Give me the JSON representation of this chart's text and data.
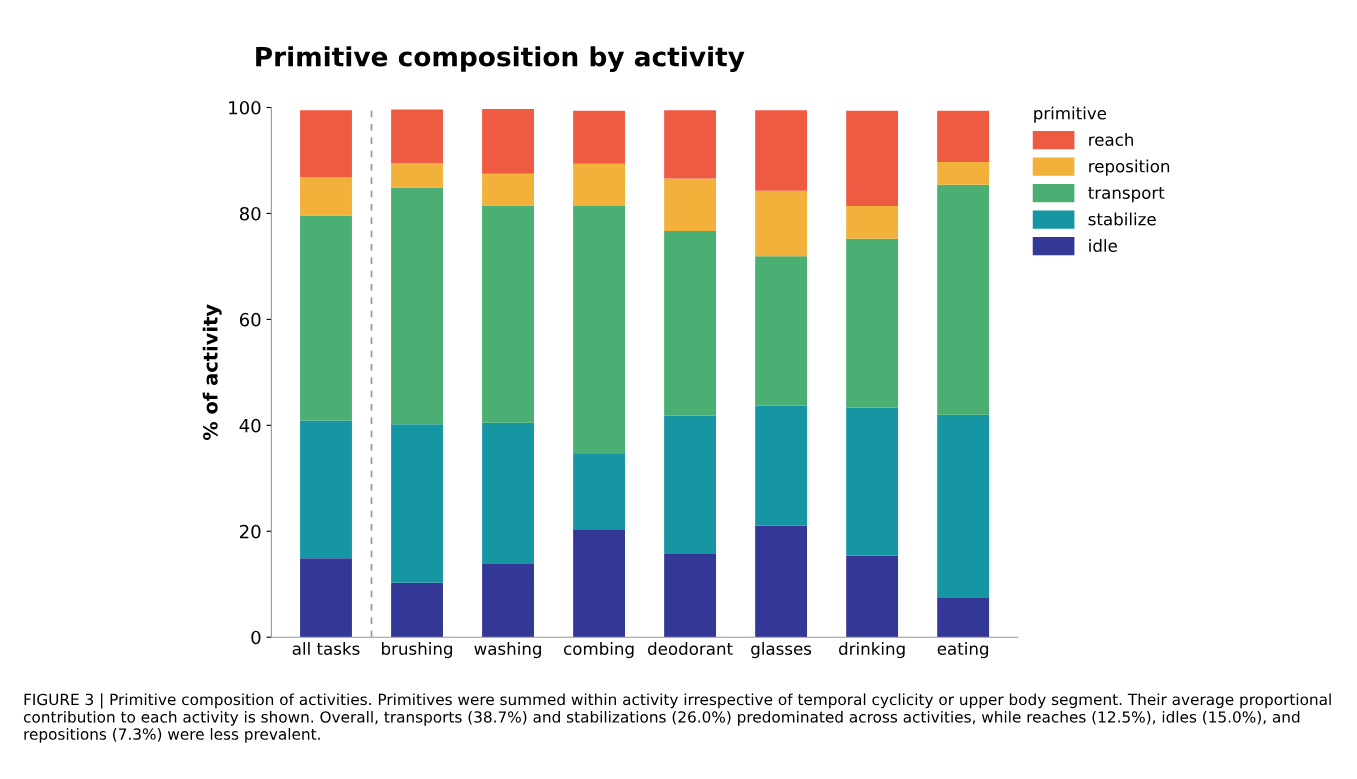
{
  "chart_data": {
    "type": "bar",
    "stacked": true,
    "title": "Primitive composition by activity",
    "ylabel": "% of activity",
    "legend_title": "primitive",
    "legend": "top right",
    "grid": false,
    "categories": [
      "all tasks",
      "brushing",
      "washing",
      "combing",
      "deodorant",
      "glasses",
      "drinking",
      "eating"
    ],
    "series": [
      {
        "name": "idle",
        "color": "#333795",
        "values": [
          14.9,
          10.3,
          13.8,
          20.4,
          15.7,
          21.1,
          15.4,
          7.4
        ]
      },
      {
        "name": "stabilize",
        "color": "#1696a3",
        "values": [
          26.0,
          29.9,
          26.7,
          14.2,
          26.1,
          22.6,
          27.9,
          34.6
        ]
      },
      {
        "name": "transport",
        "color": "#4bae72",
        "values": [
          38.7,
          44.7,
          41.0,
          46.8,
          34.9,
          28.2,
          31.9,
          43.4
        ]
      },
      {
        "name": "reposition",
        "color": "#f2b13b",
        "values": [
          7.3,
          4.6,
          6.0,
          8.0,
          9.9,
          12.4,
          6.2,
          4.3
        ]
      },
      {
        "name": "reach",
        "color": "#ef5a43",
        "values": [
          12.6,
          10.1,
          12.2,
          10.0,
          12.9,
          15.2,
          18.0,
          9.7
        ]
      }
    ],
    "ylim": [
      0,
      100
    ],
    "yticks": [
      0,
      20,
      40,
      60,
      80,
      100
    ],
    "annotations": [
      "FIGURE 3 | Primitive composition of activities. Primitives were summed within activity irrespective of temporal cyclicity or upper body segment. Their average proportional contribution to each activity is shown. Overall, transports (38.7%) and stabilizations (26.0%) predominated across activities, while reaches (12.5%), idles (15.0%), and repositions (7.3%) were less prevalent."
    ]
  }
}
